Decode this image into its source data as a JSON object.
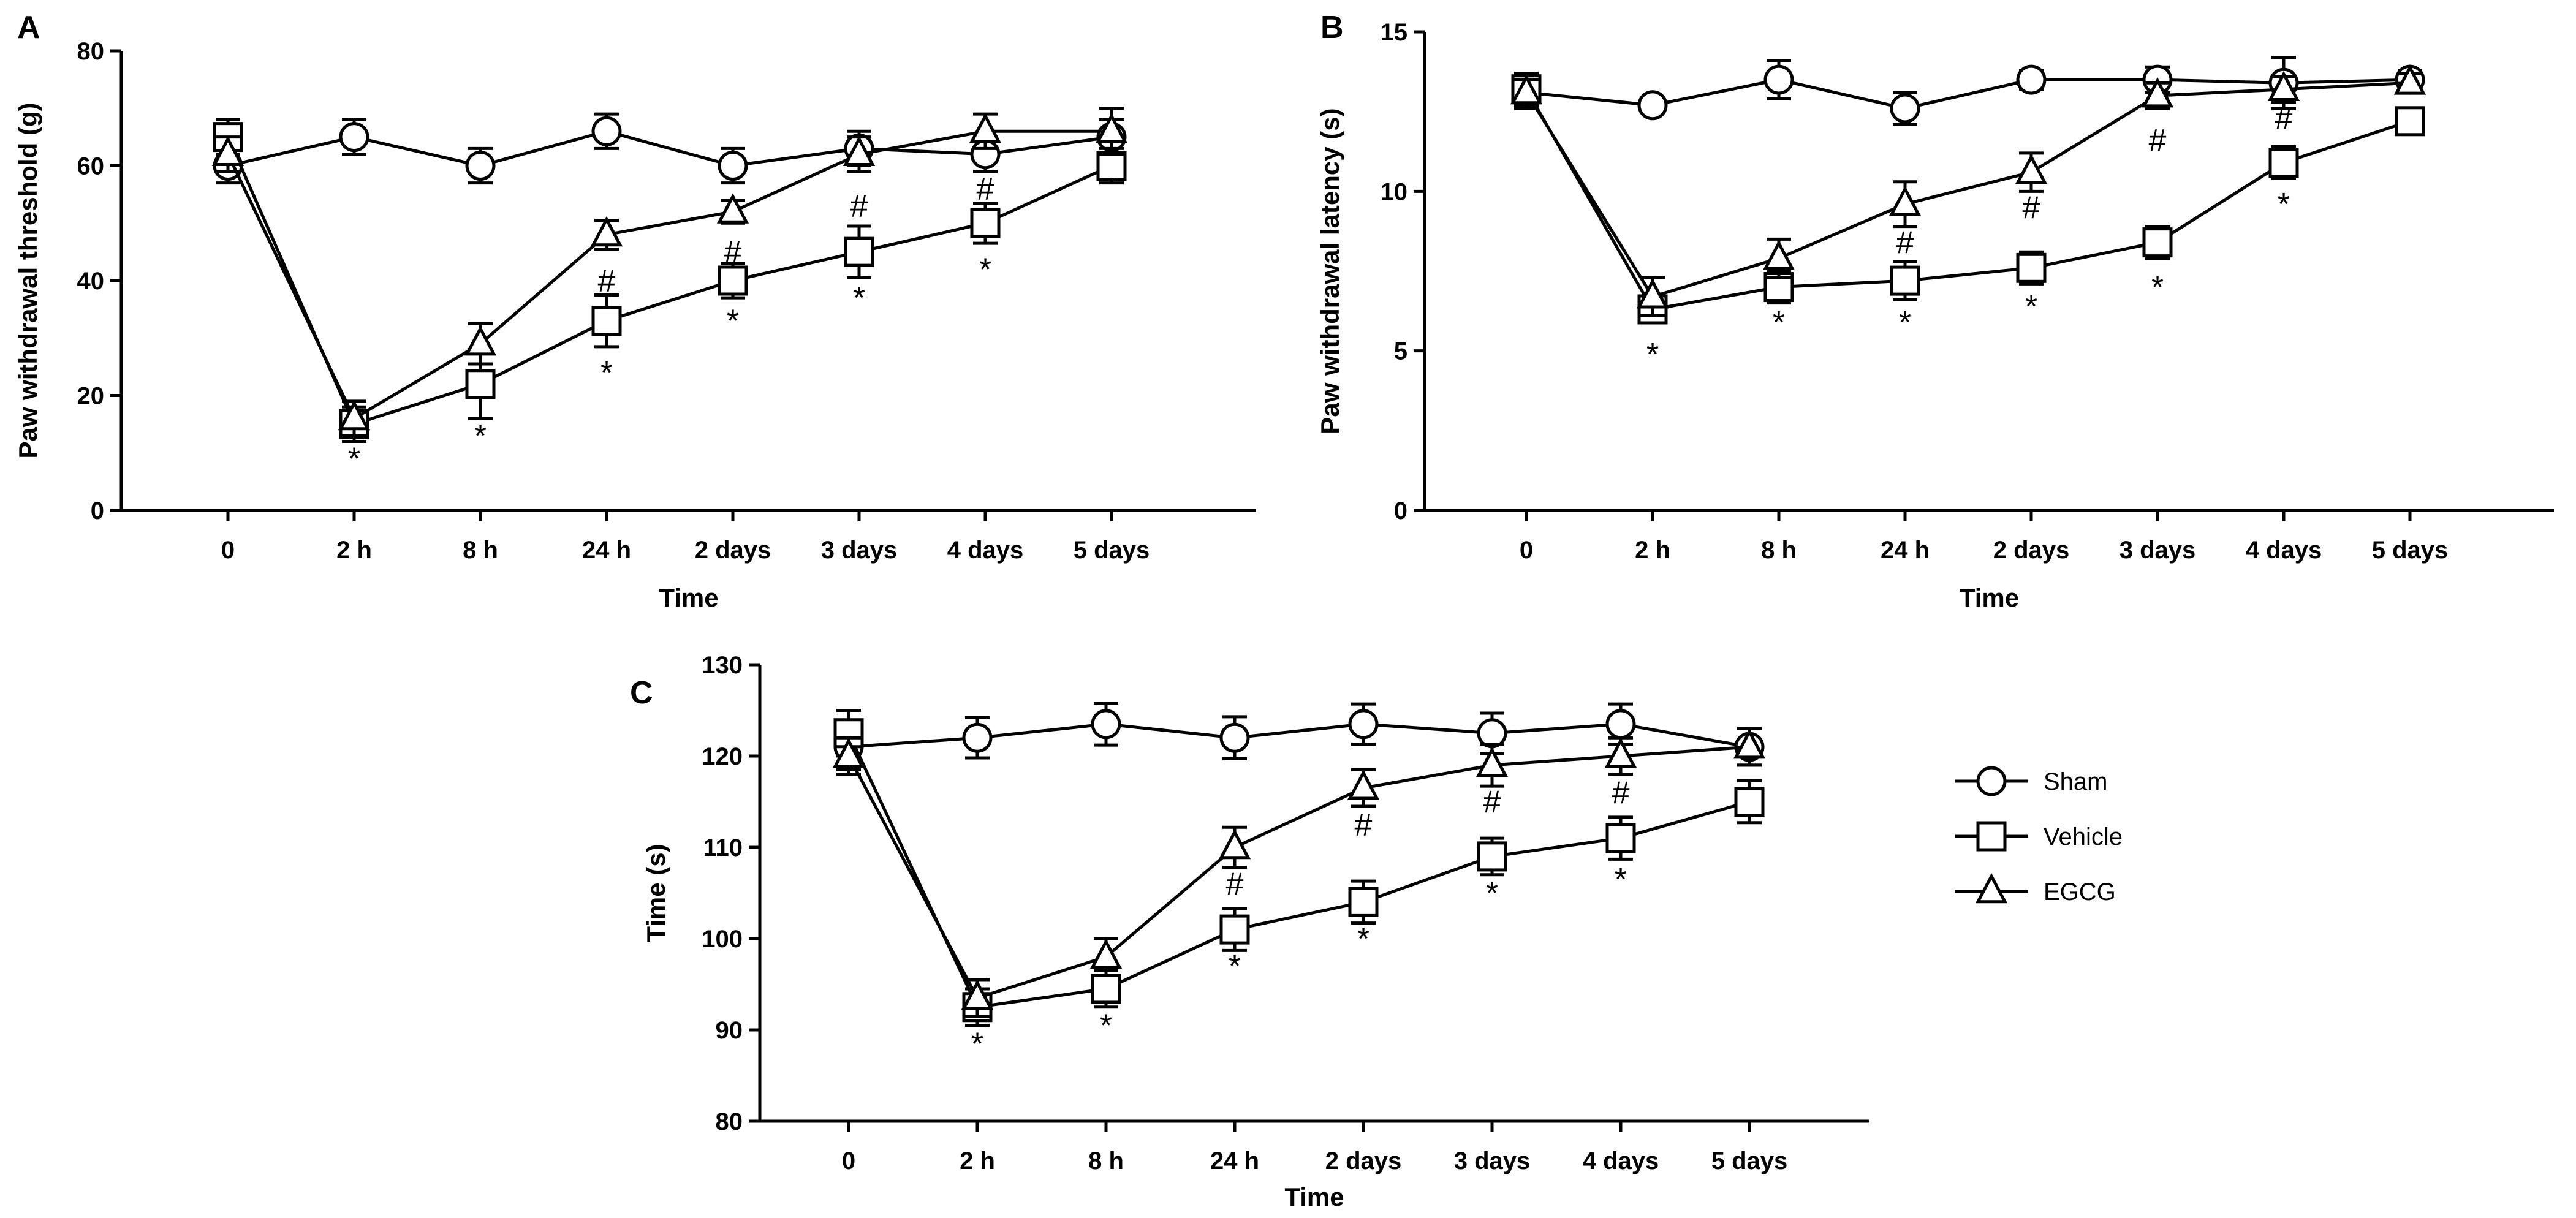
{
  "legend": {
    "entries": [
      {
        "name": "Sham",
        "marker": "circle"
      },
      {
        "name": "Vehicle",
        "marker": "square"
      },
      {
        "name": "EGCG",
        "marker": "triangle"
      }
    ]
  },
  "chart_data": [
    {
      "panel": "A",
      "type": "line",
      "title": "",
      "xlabel": "Time",
      "ylabel": "Paw withdrawal threshold (g)",
      "categories": [
        "0",
        "2 h",
        "8 h",
        "24 h",
        "2 days",
        "3 days",
        "4 days",
        "5 days"
      ],
      "ylim": [
        0,
        80
      ],
      "yticks": [
        0,
        20,
        40,
        60,
        80
      ],
      "series": [
        {
          "name": "Sham",
          "marker": "circle",
          "values": [
            60,
            65,
            60,
            66,
            60,
            63,
            62,
            65
          ],
          "errors": [
            3,
            3,
            3,
            3,
            3,
            3,
            3,
            3
          ]
        },
        {
          "name": "Vehicle",
          "marker": "square",
          "values": [
            65,
            15,
            22,
            33,
            40,
            45,
            50,
            60
          ],
          "errors": [
            3,
            3,
            6,
            4.5,
            3,
            4.5,
            3.5,
            3
          ]
        },
        {
          "name": "EGCG",
          "marker": "triangle",
          "values": [
            62,
            16,
            29,
            48,
            52,
            62,
            66,
            66
          ],
          "errors": [
            3,
            3,
            3.5,
            2.5,
            2,
            3,
            3,
            4
          ]
        }
      ],
      "annotations": [
        {
          "text": "*",
          "category": "2 h",
          "value": 9
        },
        {
          "text": "*",
          "category": "8 h",
          "value": 13
        },
        {
          "text": "*",
          "category": "24 h",
          "value": 24
        },
        {
          "text": "#",
          "category": "24 h",
          "value": 40
        },
        {
          "text": "*",
          "category": "2 days",
          "value": 33
        },
        {
          "text": "#",
          "category": "2 days",
          "value": 45
        },
        {
          "text": "*",
          "category": "3 days",
          "value": 37
        },
        {
          "text": "#",
          "category": "3 days",
          "value": 53
        },
        {
          "text": "*",
          "category": "4 days",
          "value": 42
        },
        {
          "text": "#",
          "category": "4 days",
          "value": 56
        }
      ]
    },
    {
      "panel": "B",
      "type": "line",
      "title": "",
      "xlabel": "Time",
      "ylabel": "Paw withdrawal latency (s)",
      "categories": [
        "0",
        "2 h",
        "8 h",
        "24 h",
        "2 days",
        "3 days",
        "4 days",
        "5 days"
      ],
      "ylim": [
        0,
        15
      ],
      "yticks": [
        0,
        5,
        10,
        15
      ],
      "series": [
        {
          "name": "Sham",
          "marker": "circle",
          "values": [
            13.1,
            12.7,
            13.5,
            12.6,
            13.5,
            13.5,
            13.4,
            13.5
          ],
          "errors": [
            0.5,
            0.2,
            0.6,
            0.5,
            0.3,
            0.4,
            0.8,
            0.3
          ]
        },
        {
          "name": "Vehicle",
          "marker": "square",
          "values": [
            13.2,
            6.3,
            7.0,
            7.2,
            7.6,
            8.4,
            10.9,
            12.2
          ],
          "errors": [
            0.5,
            0.4,
            0.5,
            0.6,
            0.5,
            0.5,
            0.5,
            0.4
          ]
        },
        {
          "name": "EGCG",
          "marker": "triangle",
          "values": [
            13.1,
            6.7,
            7.9,
            9.6,
            10.6,
            13.0,
            13.2,
            13.4
          ],
          "errors": [
            0.4,
            0.6,
            0.6,
            0.7,
            0.6,
            0.4,
            0.4,
            0.3
          ]
        }
      ],
      "annotations": [
        {
          "text": "*",
          "category": "2 h",
          "value": 4.9
        },
        {
          "text": "*",
          "category": "8 h",
          "value": 5.9
        },
        {
          "text": "*",
          "category": "24 h",
          "value": 5.9
        },
        {
          "text": "#",
          "category": "24 h",
          "value": 8.4
        },
        {
          "text": "*",
          "category": "2 days",
          "value": 6.4
        },
        {
          "text": "#",
          "category": "2 days",
          "value": 9.5
        },
        {
          "text": "*",
          "category": "3 days",
          "value": 7.0
        },
        {
          "text": "#",
          "category": "3 days",
          "value": 11.6
        },
        {
          "text": "*",
          "category": "4 days",
          "value": 9.6
        },
        {
          "text": "#",
          "category": "4 days",
          "value": 12.3
        }
      ]
    },
    {
      "panel": "C",
      "type": "line",
      "title": "",
      "xlabel": "Time",
      "ylabel": "Time (s)",
      "categories": [
        "0",
        "2 h",
        "8 h",
        "24 h",
        "2 days",
        "3 days",
        "4 days",
        "5 days"
      ],
      "ylim": [
        80,
        130
      ],
      "yticks": [
        80,
        90,
        100,
        110,
        120,
        130
      ],
      "series": [
        {
          "name": "Sham",
          "marker": "circle",
          "values": [
            121,
            122,
            123.5,
            122,
            123.5,
            122.5,
            123.5,
            121
          ],
          "errors": [
            2.5,
            2.2,
            2.3,
            2.3,
            2.2,
            2.2,
            2.2,
            2
          ]
        },
        {
          "name": "Vehicle",
          "marker": "square",
          "values": [
            122.5,
            92.5,
            94.5,
            101,
            104,
            109,
            111,
            115
          ],
          "errors": [
            2.5,
            2,
            2,
            2.3,
            2.3,
            2,
            2.3,
            2.3
          ]
        },
        {
          "name": "EGCG",
          "marker": "triangle",
          "values": [
            120,
            93.5,
            98,
            110,
            116.5,
            119,
            120,
            121
          ],
          "errors": [
            2,
            2,
            2,
            2.2,
            2,
            2.3,
            2,
            2
          ]
        }
      ],
      "annotations": [
        {
          "text": "*",
          "category": "2 h",
          "value": 88.5
        },
        {
          "text": "*",
          "category": "8 h",
          "value": 90.5
        },
        {
          "text": "*",
          "category": "24 h",
          "value": 97
        },
        {
          "text": "#",
          "category": "24 h",
          "value": 106
        },
        {
          "text": "*",
          "category": "2 days",
          "value": 100
        },
        {
          "text": "#",
          "category": "2 days",
          "value": 112.5
        },
        {
          "text": "*",
          "category": "3 days",
          "value": 105
        },
        {
          "text": "#",
          "category": "3 days",
          "value": 115
        },
        {
          "text": "*",
          "category": "4 days",
          "value": 106.5
        },
        {
          "text": "#",
          "category": "4 days",
          "value": 116
        }
      ]
    }
  ]
}
